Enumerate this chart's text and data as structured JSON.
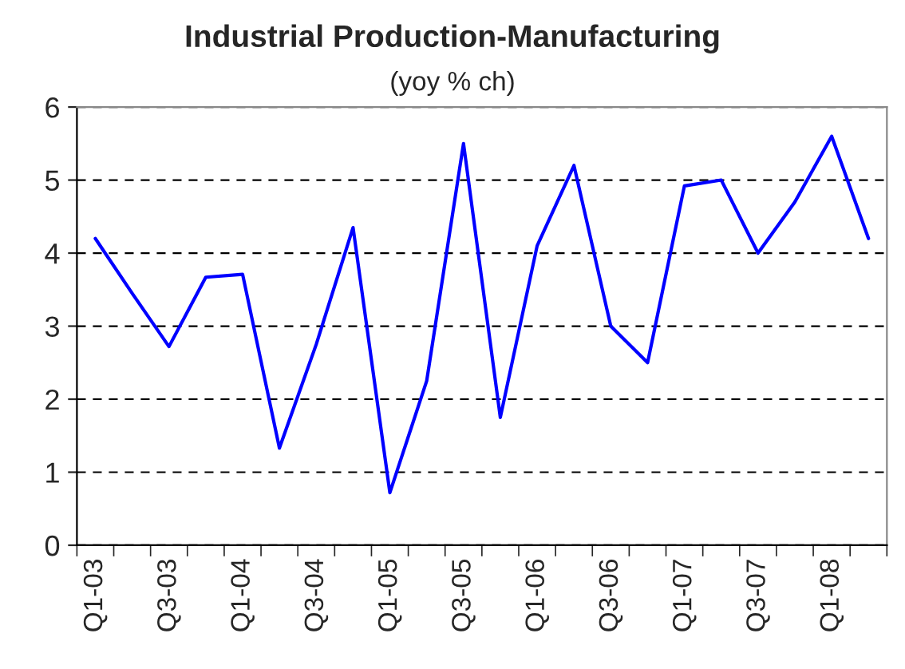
{
  "chart_data": {
    "type": "line",
    "title": "Industrial Production-Manufacturing",
    "subtitle": "(yoy % ch)",
    "categories": [
      "Q1-03",
      null,
      "Q3-03",
      null,
      "Q1-04",
      null,
      "Q3-04",
      null,
      "Q1-05",
      null,
      "Q3-05",
      null,
      "Q1-06",
      null,
      "Q3-06",
      null,
      "Q1-07",
      null,
      "Q3-07",
      null,
      "Q1-08",
      null
    ],
    "series": [
      {
        "color": "#0000ff",
        "values": [
          4.2,
          3.45,
          2.72,
          3.67,
          3.71,
          1.33,
          2.75,
          4.35,
          0.72,
          2.25,
          5.5,
          1.75,
          4.1,
          5.2,
          3.0,
          2.5,
          4.92,
          5.0,
          4.0,
          4.7,
          5.6,
          4.2
        ]
      }
    ],
    "ylim": [
      0,
      6
    ],
    "yticks": [
      0,
      1,
      2,
      3,
      4,
      5,
      6
    ],
    "grid": "y",
    "marker": "none",
    "line_style": "solid",
    "legend": false
  }
}
